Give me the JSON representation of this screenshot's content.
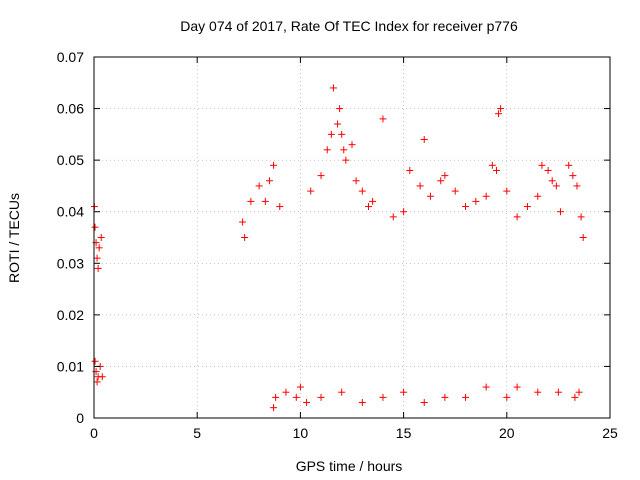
{
  "chart_data": {
    "type": "scatter",
    "title": "Day 074 of 2017, Rate Of TEC Index for receiver p776",
    "xlabel": "GPS time / hours",
    "ylabel": "ROTI / TECUs",
    "xlim": [
      0,
      25
    ],
    "ylim": [
      0,
      0.07
    ],
    "x_ticks": [
      "0",
      "5",
      "10",
      "15",
      "20",
      "25"
    ],
    "y_ticks": [
      "0",
      "0.01",
      "0.02",
      "0.03",
      "0.04",
      "0.05",
      "0.06",
      "0.07"
    ],
    "grid": true,
    "marker": "+",
    "color": "#ff0000",
    "series": [
      {
        "points": [
          [
            0.02,
            0.041
          ],
          [
            0.05,
            0.037
          ],
          [
            0.1,
            0.034
          ],
          [
            0.15,
            0.031
          ],
          [
            0.25,
            0.033
          ],
          [
            0.35,
            0.035
          ],
          [
            0.2,
            0.029
          ],
          [
            0.05,
            0.011
          ],
          [
            0.1,
            0.009
          ],
          [
            0.15,
            0.007
          ],
          [
            0.2,
            0.008
          ],
          [
            0.3,
            0.01
          ],
          [
            0.4,
            0.008
          ],
          [
            7.2,
            0.038
          ],
          [
            7.3,
            0.035
          ],
          [
            7.6,
            0.042
          ],
          [
            8.0,
            0.045
          ],
          [
            8.3,
            0.042
          ],
          [
            8.5,
            0.046
          ],
          [
            8.7,
            0.049
          ],
          [
            9.0,
            0.041
          ],
          [
            8.7,
            0.002
          ],
          [
            8.8,
            0.004
          ],
          [
            9.3,
            0.005
          ],
          [
            9.8,
            0.004
          ],
          [
            10.0,
            0.006
          ],
          [
            10.5,
            0.044
          ],
          [
            11.0,
            0.047
          ],
          [
            11.3,
            0.052
          ],
          [
            11.5,
            0.055
          ],
          [
            11.6,
            0.064
          ],
          [
            11.8,
            0.057
          ],
          [
            11.9,
            0.06
          ],
          [
            12.0,
            0.055
          ],
          [
            12.1,
            0.052
          ],
          [
            12.2,
            0.05
          ],
          [
            12.5,
            0.053
          ],
          [
            12.7,
            0.046
          ],
          [
            13.0,
            0.044
          ],
          [
            13.3,
            0.041
          ],
          [
            13.5,
            0.042
          ],
          [
            14.0,
            0.058
          ],
          [
            14.5,
            0.039
          ],
          [
            15.0,
            0.04
          ],
          [
            15.3,
            0.048
          ],
          [
            15.8,
            0.045
          ],
          [
            16.0,
            0.054
          ],
          [
            16.3,
            0.043
          ],
          [
            16.8,
            0.046
          ],
          [
            17.0,
            0.047
          ],
          [
            17.5,
            0.044
          ],
          [
            18.0,
            0.041
          ],
          [
            18.5,
            0.042
          ],
          [
            19.0,
            0.043
          ],
          [
            19.3,
            0.049
          ],
          [
            19.5,
            0.048
          ],
          [
            19.6,
            0.059
          ],
          [
            19.7,
            0.06
          ],
          [
            20.0,
            0.044
          ],
          [
            20.5,
            0.039
          ],
          [
            21.0,
            0.041
          ],
          [
            21.5,
            0.043
          ],
          [
            21.7,
            0.049
          ],
          [
            22.0,
            0.048
          ],
          [
            22.2,
            0.046
          ],
          [
            22.4,
            0.045
          ],
          [
            22.6,
            0.04
          ],
          [
            23.0,
            0.049
          ],
          [
            23.2,
            0.047
          ],
          [
            23.4,
            0.045
          ],
          [
            23.6,
            0.039
          ],
          [
            23.7,
            0.035
          ],
          [
            10.3,
            0.003
          ],
          [
            11.0,
            0.004
          ],
          [
            12.0,
            0.005
          ],
          [
            13.0,
            0.003
          ],
          [
            14.0,
            0.004
          ],
          [
            15.0,
            0.005
          ],
          [
            16.0,
            0.003
          ],
          [
            17.0,
            0.004
          ],
          [
            18.0,
            0.004
          ],
          [
            19.0,
            0.006
          ],
          [
            20.0,
            0.004
          ],
          [
            20.5,
            0.006
          ],
          [
            21.5,
            0.005
          ],
          [
            22.5,
            0.005
          ],
          [
            23.3,
            0.004
          ],
          [
            23.5,
            0.005
          ]
        ]
      }
    ]
  }
}
